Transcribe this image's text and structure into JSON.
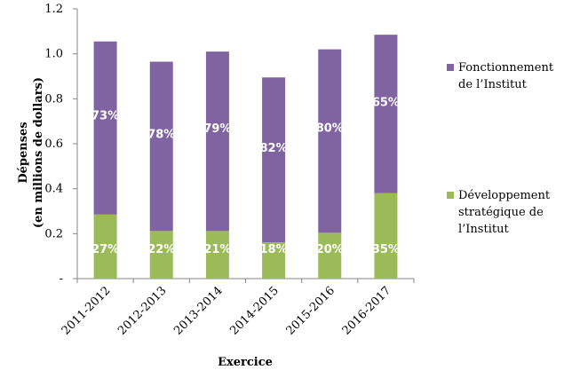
{
  "chart_data": {
    "type": "bar",
    "stacked": true,
    "categories": [
      "2011-2012",
      "2012-2013",
      "2013-2014",
      "2014-2015",
      "2015-2016",
      "2016-2017"
    ],
    "totals": [
      1.055,
      0.965,
      1.01,
      0.895,
      1.02,
      1.085
    ],
    "series": [
      {
        "name": "Développement stratégique de l’Institut",
        "color": "#9bbb59",
        "values": [
          0.285,
          0.212,
          0.212,
          0.161,
          0.204,
          0.38
        ],
        "labels": [
          "27%",
          "22%",
          "21%",
          "18%",
          "20%",
          "35%"
        ]
      },
      {
        "name": "Fonctionnement de l’Institut",
        "color": "#8064a2",
        "values": [
          0.77,
          0.753,
          0.798,
          0.734,
          0.816,
          0.705
        ],
        "labels": [
          "73%",
          "78%",
          "79%",
          "82%",
          "80%",
          "65%"
        ]
      }
    ],
    "ylabel_line1": "Dépenses",
    "ylabel_line2": "(en millions de dollars)",
    "xlabel": "Exercice",
    "ylim": [
      0,
      1.2
    ],
    "yticks": [
      "-",
      "0.2",
      "0.4",
      "0.6",
      "0.8",
      "1.0",
      "1.2"
    ],
    "legend_position": "right",
    "legend": [
      {
        "lines": [
          "Fonctionnement",
          "de l’Institut"
        ],
        "color": "#8064a2"
      },
      {
        "lines": [
          "Développement",
          "stratégique de",
          "l’Institut"
        ],
        "color": "#9bbb59"
      }
    ]
  }
}
